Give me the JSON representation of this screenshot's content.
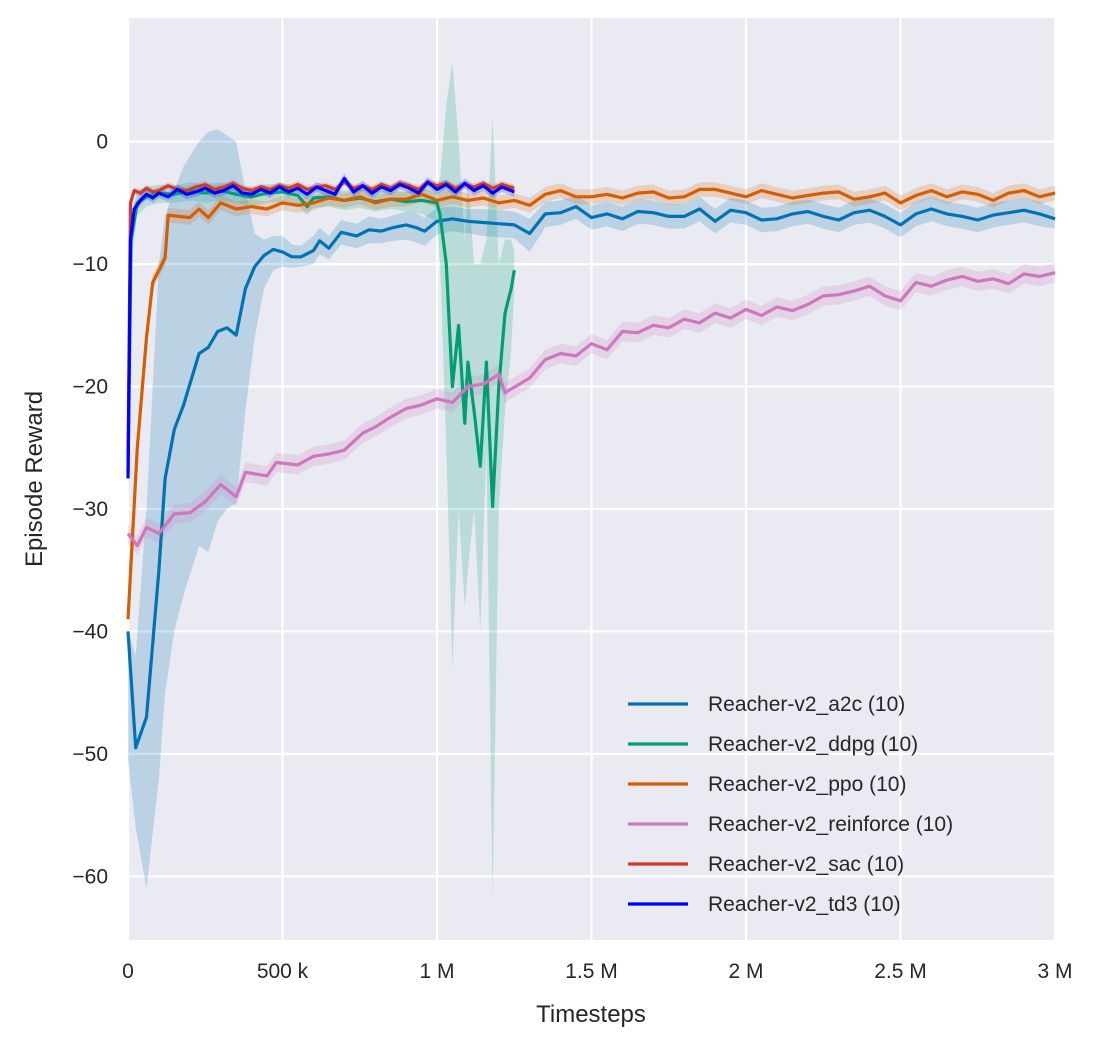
{
  "chart_data": {
    "type": "line",
    "xlabel": "Timesteps",
    "ylabel": "Episode Reward",
    "xlim": [
      0,
      3000000
    ],
    "ylim": [
      -65.2,
      10.1
    ],
    "grid": true,
    "legend_placement": "lower-right",
    "xticks": [
      0,
      500000,
      1000000,
      1500000,
      2000000,
      2500000,
      3000000
    ],
    "xtick_labels": [
      "0",
      "500 k",
      "1 M",
      "1.5 M",
      "2 M",
      "2.5 M",
      "3 M"
    ],
    "yticks": [
      0,
      -10,
      -20,
      -30,
      -40,
      -50,
      -60
    ],
    "ytick_labels": [
      "0",
      "−10",
      "−20",
      "−30",
      "−40",
      "−50",
      "−60"
    ],
    "series": [
      {
        "name": "Reacher-v2_a2c (10)",
        "color": "#0173b2",
        "x": [
          0,
          25000,
          60000,
          100000,
          120000,
          150000,
          180000,
          230000,
          260000,
          290000,
          320000,
          350000,
          380000,
          410000,
          440000,
          470000,
          500000,
          530000,
          560000,
          600000,
          620000,
          650000,
          690000,
          740000,
          780000,
          820000,
          860000,
          900000,
          930000,
          960000,
          1000000,
          1050000,
          1100000,
          1150000,
          1200000,
          1250000,
          1300000,
          1350000,
          1400000,
          1450000,
          1500000,
          1550000,
          1600000,
          1650000,
          1700000,
          1750000,
          1800000,
          1850000,
          1900000,
          1950000,
          2000000,
          2050000,
          2100000,
          2150000,
          2200000,
          2250000,
          2300000,
          2350000,
          2400000,
          2450000,
          2500000,
          2550000,
          2600000,
          2650000,
          2700000,
          2750000,
          2800000,
          2850000,
          2900000,
          2950000,
          3000000
        ],
        "y": [
          -40,
          -49.5,
          -47,
          -35,
          -27.5,
          -23.5,
          -21.5,
          -17.3,
          -16.8,
          -15.5,
          -15.2,
          -15.8,
          -12,
          -10.2,
          -9.3,
          -8.8,
          -9,
          -9.4,
          -9.4,
          -8.9,
          -8.1,
          -8.7,
          -7.4,
          -7.7,
          -7.2,
          -7.3,
          -7,
          -6.8,
          -7,
          -7.3,
          -6.5,
          -6.3,
          -6.5,
          -6.6,
          -6.7,
          -6.8,
          -7.5,
          -5.9,
          -5.8,
          -5.3,
          -6.2,
          -5.9,
          -6.3,
          -5.7,
          -5.8,
          -6.1,
          -6.1,
          -5.5,
          -6.5,
          -5.6,
          -5.8,
          -6.4,
          -6.3,
          -5.9,
          -5.7,
          -6.1,
          -6.4,
          -5.8,
          -5.6,
          -6.1,
          -6.8,
          -5.9,
          -5.5,
          -5.9,
          -6.1,
          -6.4,
          -6,
          -5.8,
          -5.6,
          -5.9,
          -6.3
        ],
        "lo": [
          -50.5,
          -56,
          -61,
          -52,
          -45,
          -40,
          -37,
          -33,
          -33.5,
          -31,
          -30,
          -29.5,
          -22,
          -16,
          -12,
          -10.5,
          -10.2,
          -10.3,
          -10.2,
          -10,
          -9.2,
          -9.6,
          -8.4,
          -8.7,
          -8.3,
          -8.3,
          -8.1,
          -8,
          -8.2,
          -8.5,
          -7.6,
          -7.3,
          -7.5,
          -7.7,
          -7.8,
          -7.9,
          -9,
          -7,
          -6.8,
          -6.3,
          -7.2,
          -6.9,
          -7.3,
          -6.7,
          -6.8,
          -7.1,
          -7.1,
          -6.5,
          -7.5,
          -6.6,
          -6.8,
          -7.4,
          -7.3,
          -6.9,
          -6.7,
          -7.1,
          -7.4,
          -6.8,
          -6.6,
          -7.1,
          -7.8,
          -6.9,
          -6.5,
          -6.9,
          -7.1,
          -7.4,
          -7,
          -6.8,
          -6.6,
          -6.9,
          -7.1
        ],
        "hi": [
          -40,
          -42,
          -30,
          -10,
          -6,
          -4,
          -2,
          0,
          0.8,
          1,
          0.5,
          0,
          -4,
          -7.5,
          -8,
          -7.7,
          -7.7,
          -8.4,
          -8.5,
          -7.7,
          -7,
          -7.7,
          -6.4,
          -6.7,
          -6.1,
          -6.3,
          -6,
          -5.7,
          -5.8,
          -6.2,
          -5.4,
          -5.3,
          -5.5,
          -5.5,
          -5.6,
          -5.7,
          -6.3,
          -4.9,
          -4.8,
          -4.4,
          -5.2,
          -4.9,
          -5.3,
          -4.7,
          -4.8,
          -5.1,
          -5.1,
          -4.5,
          -5.5,
          -4.6,
          -4.8,
          -5.4,
          -5.3,
          -4.9,
          -4.7,
          -5.1,
          -5.4,
          -4.8,
          -4.6,
          -5.1,
          -5.8,
          -4.9,
          -4.5,
          -4.9,
          -5.1,
          -5.4,
          -5,
          -4.8,
          -4.6,
          -4.9,
          -5.5
        ]
      },
      {
        "name": "Reacher-v2_ddpg (10)",
        "color": "#029e73",
        "x": [
          0,
          10000,
          30000,
          60000,
          100000,
          150000,
          200000,
          250000,
          300000,
          350000,
          400000,
          450000,
          500000,
          550000,
          580000,
          600000,
          650000,
          700000,
          750000,
          800000,
          850000,
          900000,
          950000,
          1000000,
          1010000,
          1030000,
          1050000,
          1070000,
          1090000,
          1100000,
          1120000,
          1140000,
          1160000,
          1180000,
          1200000,
          1220000,
          1240000,
          1250000
        ],
        "y": [
          -27,
          -8,
          -5,
          -4.5,
          -4.2,
          -4.3,
          -4,
          -4.2,
          -4,
          -4.3,
          -4.5,
          -4.2,
          -4.1,
          -4.4,
          -5.3,
          -4.6,
          -4.5,
          -4.8,
          -4.6,
          -4.9,
          -4.7,
          -4.9,
          -4.8,
          -5,
          -6,
          -10,
          -20,
          -15,
          -23,
          -18,
          -22,
          -26.5,
          -18,
          -29.8,
          -20,
          -14,
          -12,
          -10.5
        ],
        "lo": [
          -30,
          -10,
          -6,
          -5.3,
          -5,
          -5,
          -4.8,
          -5,
          -4.8,
          -5,
          -5.3,
          -5,
          -4.9,
          -5.2,
          -6,
          -5.4,
          -5.3,
          -5.6,
          -5.4,
          -5.7,
          -5.5,
          -5.7,
          -5.9,
          -6.5,
          -10,
          -25,
          -43,
          -30,
          -38,
          -35,
          -30,
          -40,
          -25,
          -62,
          -30,
          -22,
          -17,
          -12
        ],
        "hi": [
          -24,
          -6,
          -4,
          -3.7,
          -3.5,
          -3.6,
          -3.3,
          -3.5,
          -3.3,
          -3.6,
          -3.7,
          -3.5,
          -3.4,
          -3.6,
          -4.6,
          -3.9,
          -3.8,
          -4,
          -3.8,
          -4.1,
          -3.9,
          -4.1,
          -3.8,
          -3.8,
          -3,
          3,
          6.5,
          0,
          -8,
          -3,
          -10,
          -10,
          -8,
          2,
          -10,
          -8,
          -8,
          -9
        ]
      },
      {
        "name": "Reacher-v2_ppo (10)",
        "color": "#d55e00",
        "x": [
          0,
          30000,
          60000,
          80000,
          120000,
          130000,
          200000,
          230000,
          260000,
          300000,
          350000,
          400000,
          450000,
          500000,
          550000,
          600000,
          650000,
          700000,
          750000,
          800000,
          850000,
          900000,
          950000,
          1000000,
          1050000,
          1100000,
          1150000,
          1200000,
          1250000,
          1300000,
          1350000,
          1400000,
          1450000,
          1500000,
          1550000,
          1600000,
          1650000,
          1700000,
          1750000,
          1800000,
          1850000,
          1900000,
          1950000,
          2000000,
          2050000,
          2100000,
          2150000,
          2200000,
          2250000,
          2300000,
          2350000,
          2400000,
          2450000,
          2500000,
          2550000,
          2600000,
          2650000,
          2700000,
          2750000,
          2800000,
          2850000,
          2900000,
          2950000,
          3000000
        ],
        "y": [
          -39,
          -25,
          -16,
          -11.5,
          -9.5,
          -6,
          -6.2,
          -5.5,
          -6.2,
          -5,
          -5.5,
          -5.3,
          -5.5,
          -5,
          -5.2,
          -5,
          -4.6,
          -4.8,
          -4.5,
          -5,
          -4.7,
          -4.7,
          -4.3,
          -4.8,
          -4.5,
          -4.8,
          -4.6,
          -5,
          -4.8,
          -5.2,
          -4.3,
          -4,
          -4.5,
          -4.5,
          -4.3,
          -4.6,
          -4.2,
          -4.1,
          -4.6,
          -4.5,
          -3.9,
          -3.9,
          -4.2,
          -4.5,
          -4,
          -4.3,
          -4.6,
          -4.4,
          -4.2,
          -4.1,
          -4.7,
          -4.5,
          -4.2,
          -5,
          -4.4,
          -4,
          -4.5,
          -4.1,
          -4.3,
          -4.8,
          -4.2,
          -4,
          -4.5,
          -4.2
        ],
        "ci": 0.6
      },
      {
        "name": "Reacher-v2_reinforce (10)",
        "color": "#cc78bc",
        "x": [
          0,
          30000,
          60000,
          100000,
          150000,
          200000,
          250000,
          300000,
          350000,
          380000,
          450000,
          480000,
          550000,
          600000,
          650000,
          700000,
          760000,
          800000,
          850000,
          900000,
          950000,
          1000000,
          1050000,
          1100000,
          1150000,
          1200000,
          1220000,
          1300000,
          1350000,
          1400000,
          1450000,
          1500000,
          1550000,
          1600000,
          1650000,
          1700000,
          1750000,
          1800000,
          1850000,
          1900000,
          1950000,
          2000000,
          2050000,
          2100000,
          2150000,
          2200000,
          2250000,
          2300000,
          2350000,
          2400000,
          2450000,
          2500000,
          2550000,
          2600000,
          2650000,
          2700000,
          2750000,
          2800000,
          2850000,
          2900000,
          2950000,
          3000000
        ],
        "y": [
          -32,
          -33,
          -31.5,
          -32,
          -30.4,
          -30.3,
          -29.4,
          -28,
          -29,
          -27,
          -27.3,
          -26.2,
          -26.4,
          -25.7,
          -25.5,
          -25.2,
          -23.8,
          -23.3,
          -22.5,
          -21.8,
          -21.5,
          -21,
          -21.3,
          -20,
          -19.8,
          -19,
          -20.5,
          -19.3,
          -17.8,
          -17.3,
          -17.5,
          -16.5,
          -17,
          -15.5,
          -15.6,
          -15,
          -15.2,
          -14.5,
          -14.8,
          -14,
          -14.4,
          -13.7,
          -14.2,
          -13.5,
          -13.8,
          -13.3,
          -12.6,
          -12.5,
          -12.2,
          -11.8,
          -12.6,
          -13,
          -11.5,
          -11.8,
          -11.3,
          -11,
          -11.4,
          -11.2,
          -11.6,
          -10.8,
          -11,
          -10.7
        ],
        "ci": 0.8
      },
      {
        "name": "Reacher-v2_sac (10)",
        "color": "#d03a2a",
        "x": [
          0,
          8000,
          20000,
          40000,
          60000,
          80000,
          100000,
          130000,
          160000,
          190000,
          220000,
          250000,
          280000,
          310000,
          340000,
          370000,
          400000,
          430000,
          460000,
          490000,
          520000,
          550000,
          580000,
          610000,
          640000,
          670000,
          700000,
          730000,
          760000,
          790000,
          820000,
          850000,
          880000,
          910000,
          940000,
          970000,
          1000000,
          1030000,
          1060000,
          1090000,
          1120000,
          1150000,
          1180000,
          1210000,
          1250000
        ],
        "y": [
          -26,
          -5,
          -4,
          -4.2,
          -3.8,
          -4.1,
          -4,
          -3.6,
          -3.9,
          -4,
          -3.7,
          -3.5,
          -3.9,
          -3.7,
          -3.4,
          -3.8,
          -4,
          -3.7,
          -3.9,
          -3.6,
          -3.8,
          -3.5,
          -3.9,
          -3.7,
          -3.6,
          -3.9,
          -3.3,
          -3.8,
          -3.6,
          -3.9,
          -3.5,
          -3.8,
          -3.4,
          -3.6,
          -3.9,
          -3.3,
          -3.6,
          -3.4,
          -3.8,
          -3.5,
          -3.7,
          -3.4,
          -3.8,
          -3.5,
          -3.8
        ],
        "ci": 0.3
      },
      {
        "name": "Reacher-v2_td3 (10)",
        "color": "#0000ff",
        "x": [
          0,
          8000,
          20000,
          40000,
          60000,
          80000,
          100000,
          130000,
          160000,
          190000,
          220000,
          250000,
          280000,
          310000,
          340000,
          370000,
          400000,
          430000,
          460000,
          490000,
          520000,
          550000,
          580000,
          610000,
          640000,
          670000,
          700000,
          730000,
          760000,
          790000,
          820000,
          850000,
          880000,
          910000,
          940000,
          970000,
          1000000,
          1030000,
          1060000,
          1090000,
          1120000,
          1150000,
          1180000,
          1210000,
          1250000
        ],
        "y": [
          -27.5,
          -8,
          -5.5,
          -4.8,
          -4.3,
          -4.6,
          -4.2,
          -4.5,
          -3.9,
          -4.3,
          -4.1,
          -3.8,
          -4.2,
          -4,
          -3.6,
          -4.2,
          -4.3,
          -3.9,
          -4.2,
          -3.7,
          -4.1,
          -3.8,
          -4.3,
          -3.7,
          -4,
          -4.3,
          -3,
          -4.1,
          -3.6,
          -4.2,
          -3.7,
          -4,
          -3.5,
          -3.8,
          -4.2,
          -3.3,
          -3.9,
          -3.5,
          -4.1,
          -3.4,
          -4,
          -3.6,
          -4.2,
          -3.7,
          -4.1
        ],
        "ci": 0.4
      }
    ]
  }
}
